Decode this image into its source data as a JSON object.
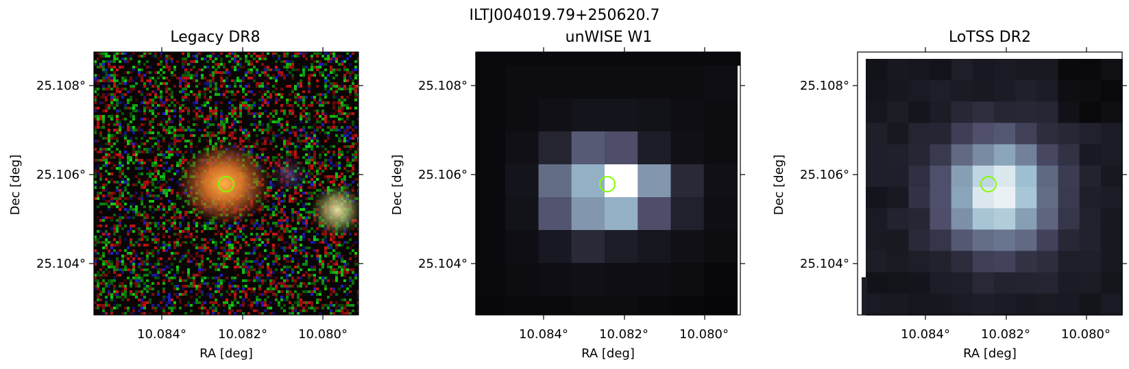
{
  "figure": {
    "title": "ILTJ004019.79+250620.7"
  },
  "panels": [
    {
      "id": "legacy",
      "title": "Legacy DR8",
      "xlabel": "RA [deg]",
      "ylabel": "Dec [deg]",
      "xticks": [
        "10.084°",
        "10.082°",
        "10.080°"
      ],
      "yticks": [
        "25.108°",
        "25.106°",
        "25.104°"
      ],
      "colormap": "rgb",
      "description_marker": "source-circle"
    },
    {
      "id": "unwise",
      "title": "unWISE W1",
      "xlabel": "RA [deg]",
      "ylabel": "Dec [deg]",
      "xticks": [
        "10.084°",
        "10.082°",
        "10.080°"
      ],
      "yticks": [
        "25.108°",
        "25.106°",
        "25.104°"
      ],
      "colormap": "bone"
    },
    {
      "id": "lotss",
      "title": "LoTSS DR2",
      "xlabel": "RA [deg]",
      "ylabel": "Dec [deg]",
      "xticks": [
        "10.084°",
        "10.082°",
        "10.080°"
      ],
      "yticks": [
        "25.108°",
        "25.106°",
        "25.104°"
      ],
      "colormap": "bone"
    }
  ],
  "colors": {
    "marker": "#7fff00",
    "axes": "#000000"
  }
}
